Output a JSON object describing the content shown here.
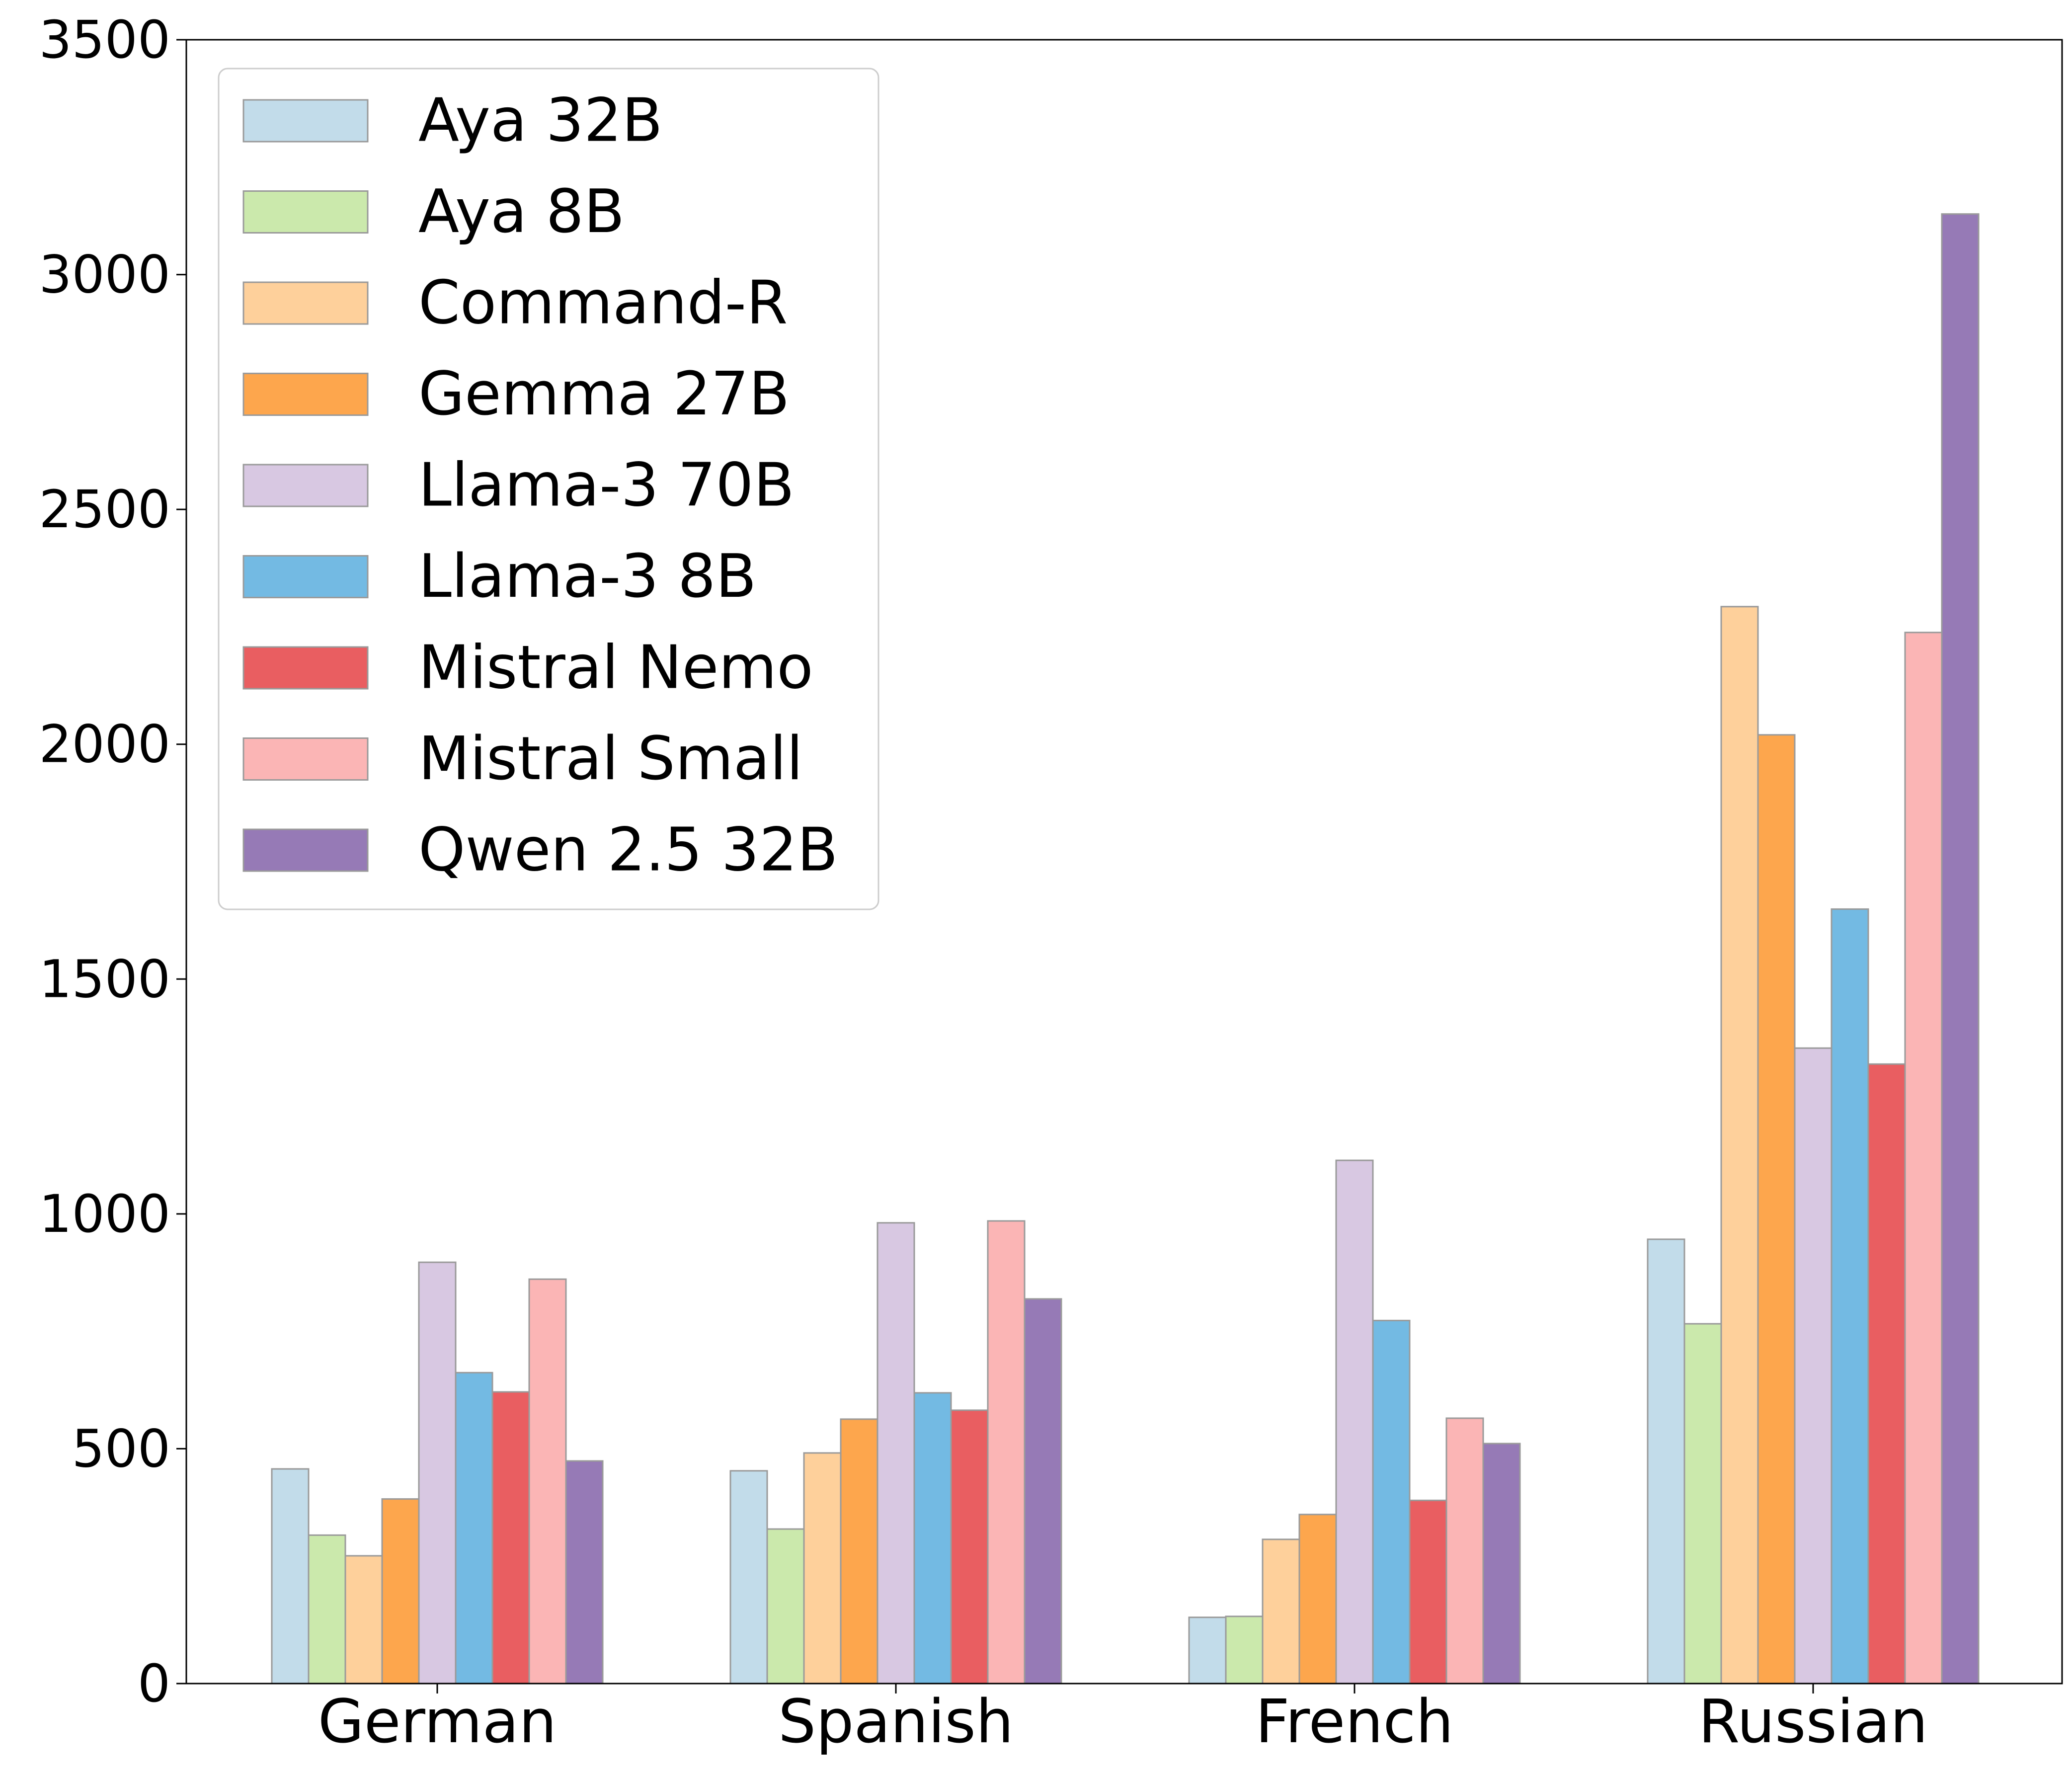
{
  "chart_data": {
    "type": "bar",
    "categories": [
      "German",
      "Spanish",
      "French",
      "Russian"
    ],
    "ylim": [
      0,
      3500
    ],
    "yticks": [
      0,
      500,
      1000,
      1500,
      2000,
      2500,
      3000,
      3500
    ],
    "ytick_labels": [
      "0",
      "500",
      "1000",
      "1500",
      "2000",
      "2500",
      "3000",
      "3500"
    ],
    "grid": false,
    "legend_position": "top-left",
    "series": [
      {
        "name": "Aya 32B",
        "color": "#c2dcea",
        "values": [
          457,
          453,
          141,
          946
        ]
      },
      {
        "name": "Aya 8B",
        "color": "#cbe9ac",
        "values": [
          316,
          329,
          143,
          766
        ]
      },
      {
        "name": "Command-R",
        "color": "#fed09b",
        "values": [
          272,
          491,
          307,
          2293
        ]
      },
      {
        "name": "Gemma 27B",
        "color": "#fda64d",
        "values": [
          393,
          563,
          360,
          2020
        ]
      },
      {
        "name": "Llama-3 70B",
        "color": "#d8c8e2",
        "values": [
          897,
          981,
          1114,
          1353
        ]
      },
      {
        "name": "Llama-3 8B",
        "color": "#73bae3",
        "values": [
          662,
          619,
          773,
          1649
        ]
      },
      {
        "name": "Mistral Nemo",
        "color": "#e95e61",
        "values": [
          621,
          582,
          390,
          1319
        ]
      },
      {
        "name": "Mistral Small",
        "color": "#fbb5b5",
        "values": [
          861,
          985,
          565,
          2238
        ]
      },
      {
        "name": "Qwen 2.5 32B",
        "color": "#967ab6",
        "values": [
          474,
          819,
          511,
          3129
        ]
      }
    ]
  }
}
